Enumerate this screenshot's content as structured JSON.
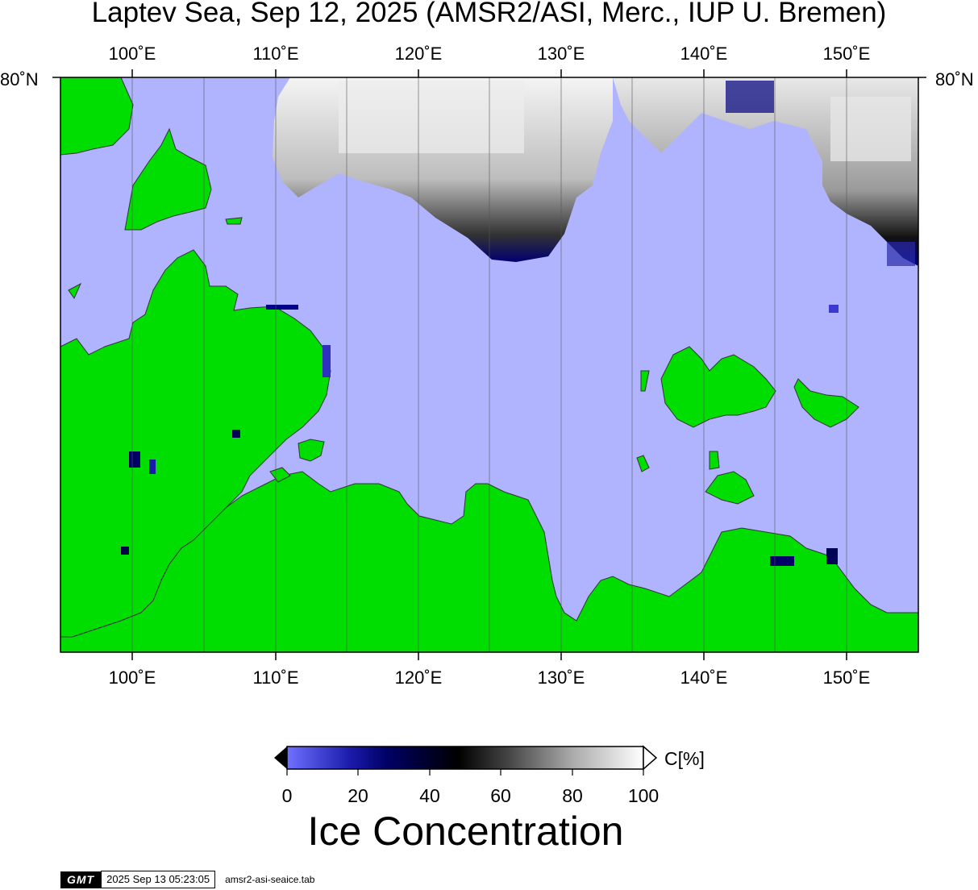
{
  "title": "Laptev Sea, Sep 12, 2025 (AMSR2/ASI, Merc., IUP U. Bremen)",
  "longitude_labels": [
    "100˚E",
    "110˚E",
    "120˚E",
    "130˚E",
    "140˚E",
    "150˚E"
  ],
  "latitude_labels": {
    "left": "80˚N",
    "right": "80˚N"
  },
  "colors": {
    "water": "#b0b4ff",
    "land": "#00dd00",
    "coast": "#333333",
    "grid": "#555555"
  },
  "colorbar": {
    "title": "Ice Concentration",
    "unit": "C[%]",
    "ticks": [
      "0",
      "20",
      "40",
      "60",
      "80",
      "100"
    ]
  },
  "footer": {
    "logo": "GMT",
    "timestamp": "2025 Sep 13 05:23:05",
    "filename": "amsr2-asi-seaice.tab"
  }
}
